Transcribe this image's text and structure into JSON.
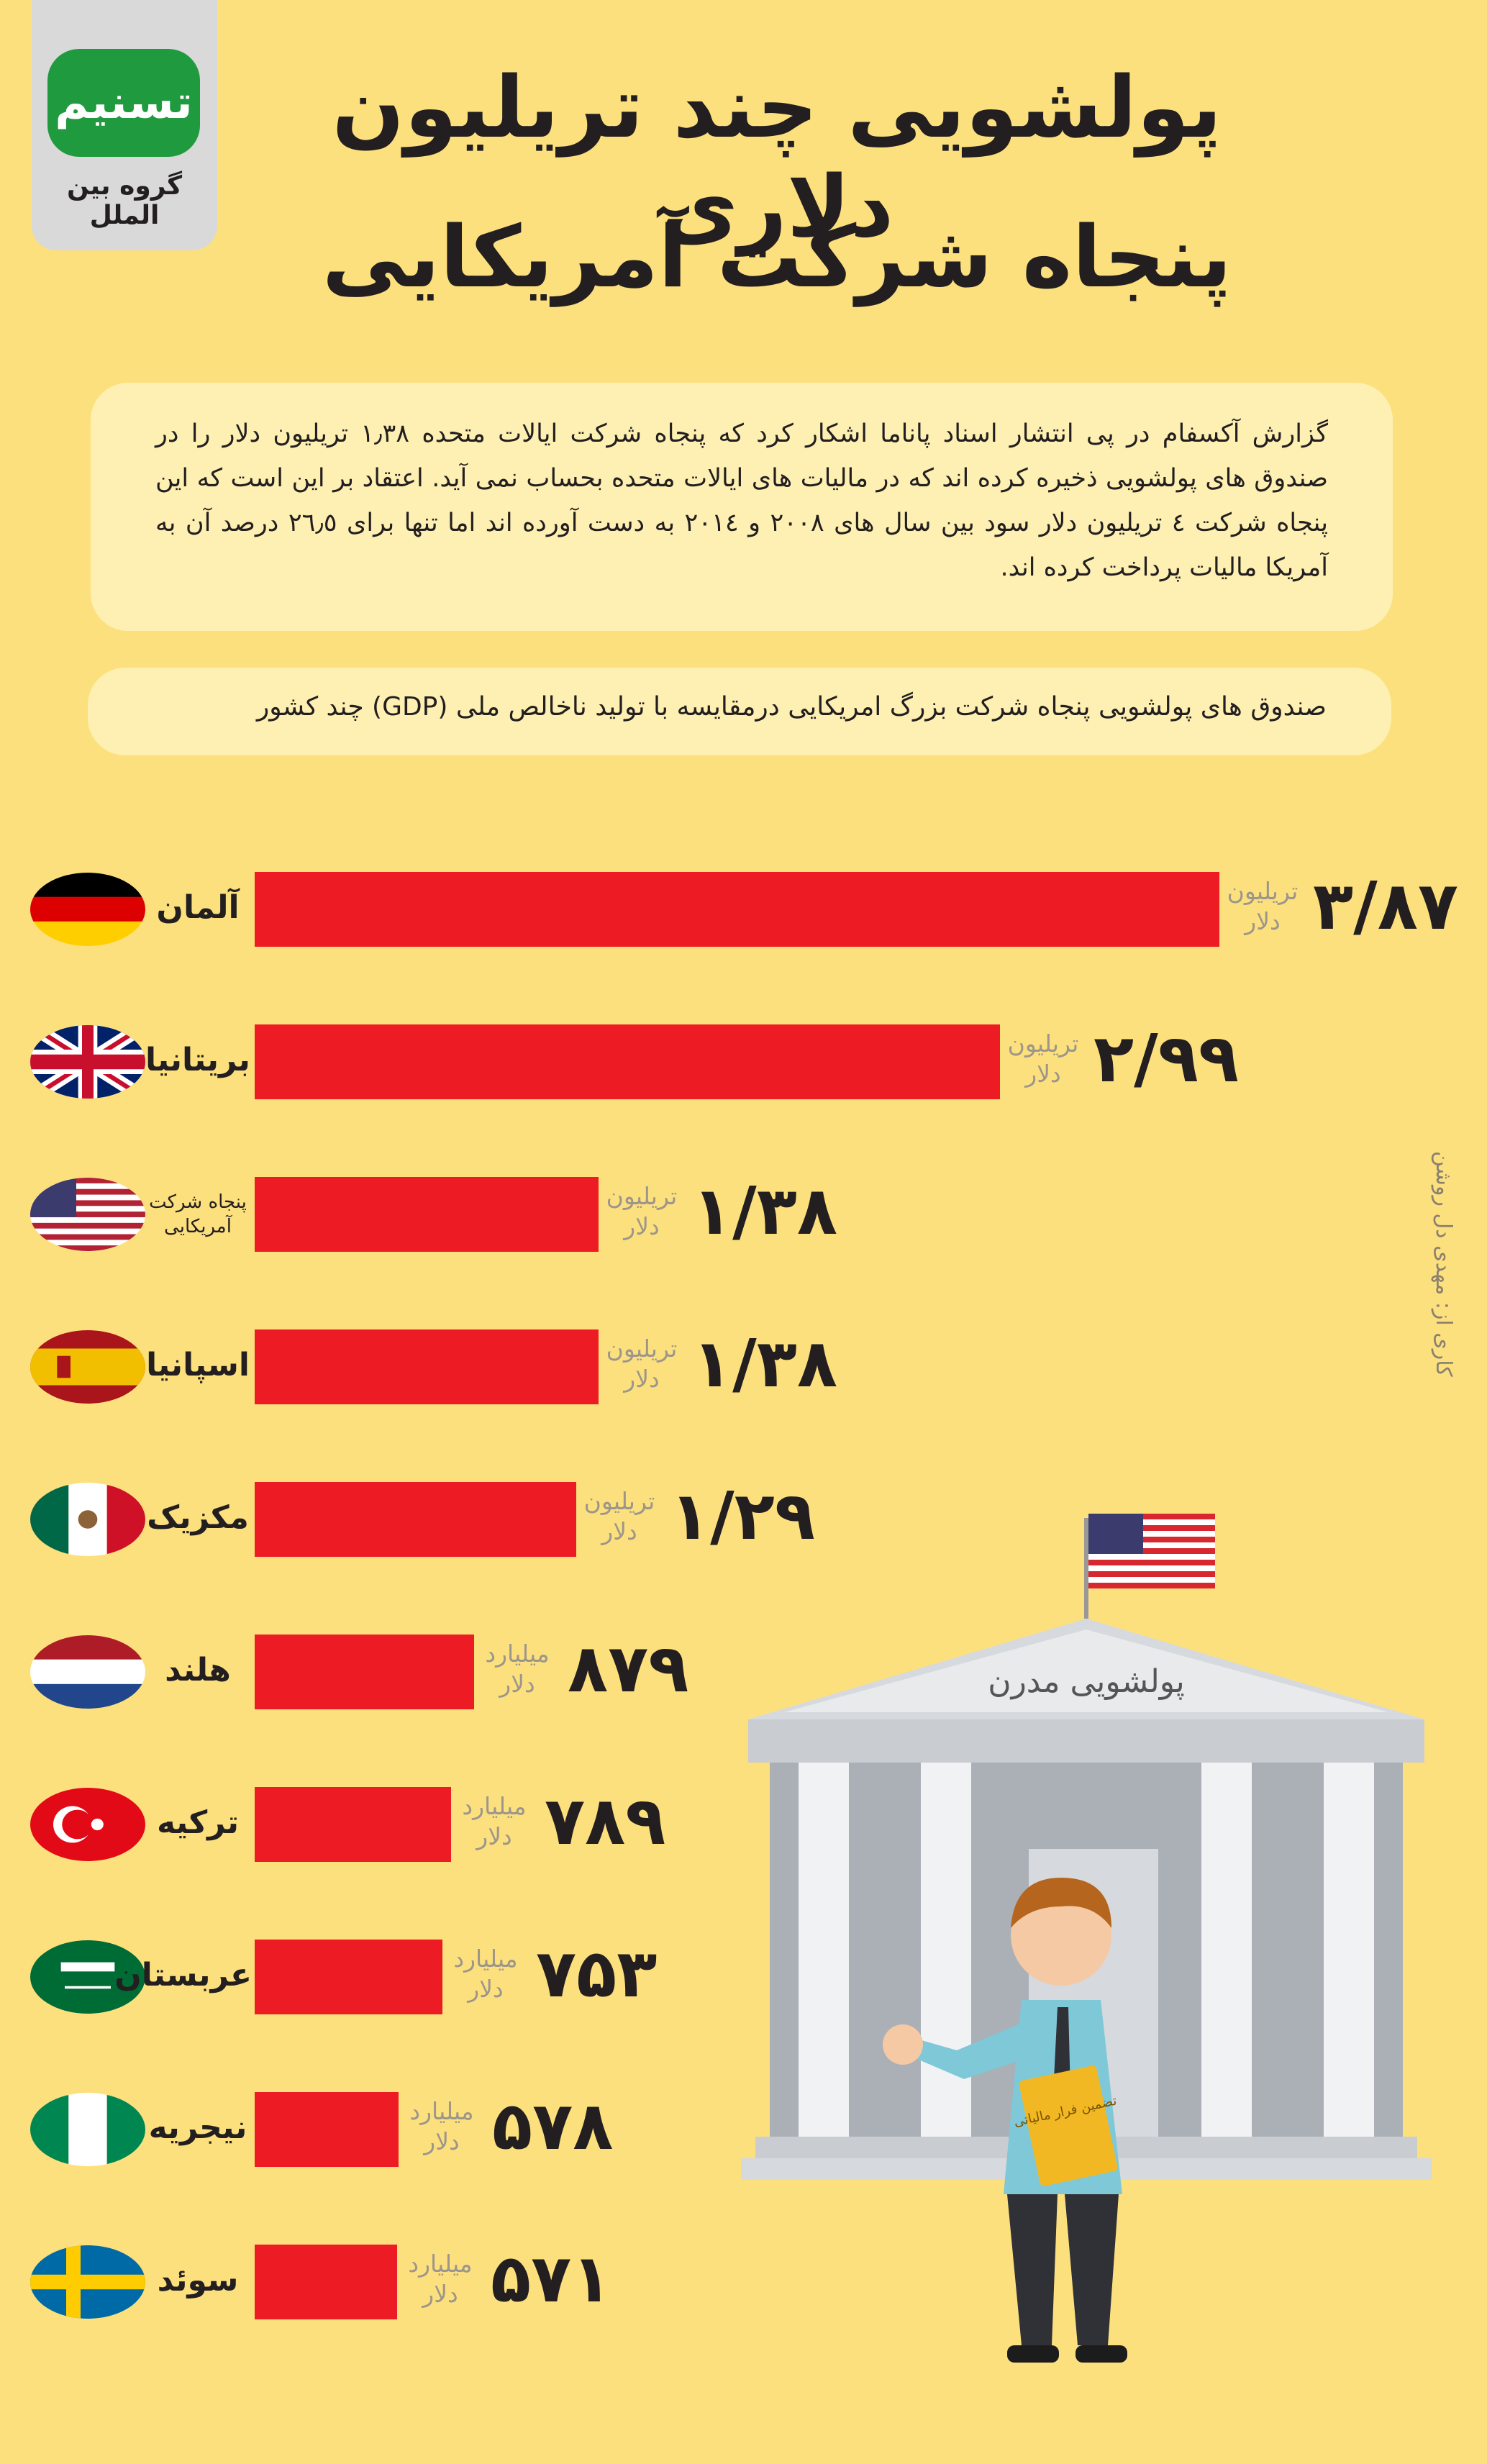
{
  "logo": {
    "mark": "تسنیم",
    "text": "گروه بین الملل"
  },
  "title": {
    "line1": "پولشویی چند تریلیون دلاری",
    "line2": "پنجاه شرکت آمریکایی"
  },
  "intro": "گزارش آکسفام در پی انتشار اسناد پاناما اشکار کرد که پنجاه شرکت ایالات متحده ۱٫۳۸ تریلیون دلار را در صندوق های پولشویی ذخیره کرده اند که در  مالیات های ایالات متحده بحساب نمی آید.  اعتقاد بر این است که این پنجاه شرکت  ٤ تریلیون دلار سود  بین سال های ۲۰۰۸ و ۲۰۱٤ به دست آورده اند اما تنها برای ٢٦٫٥ درصد آن به آمریکا مالیات پرداخت کرده اند.",
  "subtitle": "صندوق های پولشویی پنجاه شرکت بزرگ امریکایی درمقایسه با تولید ناخالص ملی (GDP) چند کشور",
  "credit": "کاری از: مهدی دل روشن",
  "bank_sign": "پولشویی مدرن",
  "book_label": "تضمین فرار مالیاتی",
  "chart_data": {
    "type": "bar",
    "orientation": "horizontal",
    "unit_note": "values in billions of US dollars",
    "categories": [
      "آلمان",
      "بریتانیا",
      "پنجاه شرکت آمریکایی",
      "اسپانیا",
      "مکزیک",
      "هلند",
      "ترکیه",
      "عربستان",
      "نیجریه",
      "سوئد"
    ],
    "values": [
      3870,
      2990,
      1380,
      1380,
      1290,
      879,
      789,
      753,
      578,
      571
    ],
    "labels": [
      "۳/۸۷",
      "۲/۹۹",
      "۱/۳۸",
      "۱/۳۸",
      "۱/۲۹",
      "۸۷۹",
      "۷۸۹",
      "۷۵۳",
      "۵۷۸",
      "۵۷۱"
    ],
    "units": [
      [
        "تریلیون",
        "دلار"
      ],
      [
        "تریلیون",
        "دلار"
      ],
      [
        "تریلیون",
        "دلار"
      ],
      [
        "تریلیون",
        "دلار"
      ],
      [
        "تریلیون",
        "دلار"
      ],
      [
        "میلیارد",
        "دلار"
      ],
      [
        "میلیارد",
        "دلار"
      ],
      [
        "میلیارد",
        "دلار"
      ],
      [
        "میلیارد",
        "دلار"
      ],
      [
        "میلیارد",
        "دلار"
      ]
    ],
    "flags": [
      "germany-flag",
      "uk-flag",
      "usa-flag",
      "spain-flag",
      "mexico-flag",
      "netherlands-flag",
      "turkey-flag",
      "saudi-flag",
      "nigeria-flag",
      "sweden-flag"
    ],
    "bar_color": "#ed1c24"
  }
}
